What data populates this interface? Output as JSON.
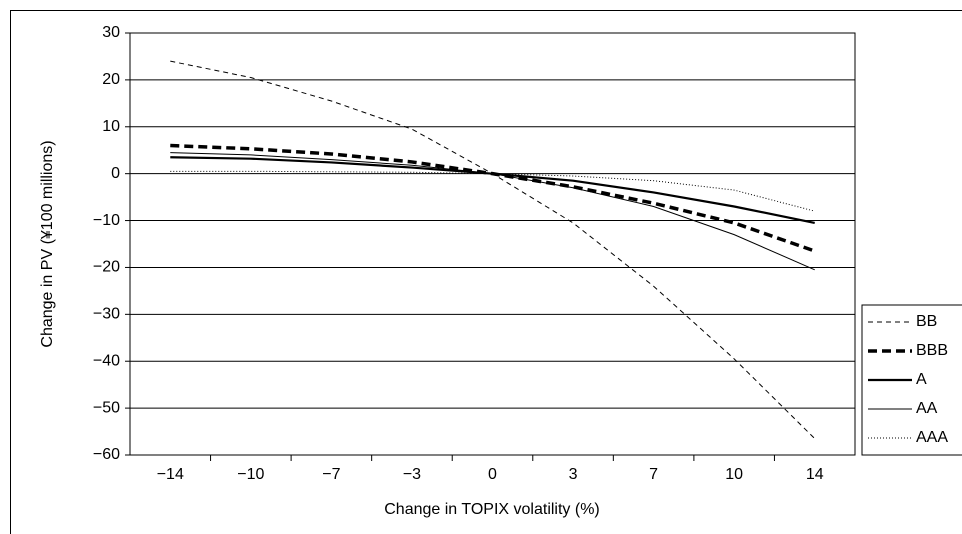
{
  "chart_data": {
    "type": "line",
    "x_label": "Change in TOPIX volatility (%)",
    "y_label": "Change in PV (¥100 millions)",
    "categories": [
      "−14",
      "−10",
      "−7",
      "−3",
      "0",
      "3",
      "7",
      "10",
      "14"
    ],
    "series": [
      {
        "name": "BB",
        "color": "#000000",
        "line_style": "dashed",
        "values": [
          24,
          20.5,
          15.5,
          9.5,
          0,
          -10.5,
          -24,
          -39.5,
          -56.5
        ]
      },
      {
        "name": "BBB",
        "color": "#000000",
        "line_style": "bold-dashed",
        "values": [
          6,
          5.3,
          4.2,
          2.5,
          0,
          -2.8,
          -6.3,
          -10.5,
          -16.5
        ]
      },
      {
        "name": "A",
        "color": "#000000",
        "line_style": "bold",
        "values": [
          3.5,
          3.2,
          2.4,
          1.3,
          0,
          -1.5,
          -4,
          -7,
          -10.5
        ]
      },
      {
        "name": "AA",
        "color": "#000000",
        "line_style": "solid",
        "values": [
          4.5,
          4,
          3,
          1.8,
          0,
          -3,
          -7,
          -13,
          -20.5
        ]
      },
      {
        "name": "AAA",
        "color": "#000000",
        "line_style": "dotted",
        "values": [
          0.5,
          0.5,
          0.4,
          0.3,
          0,
          -0.5,
          -1.5,
          -3.5,
          -8
        ]
      }
    ],
    "ylim": [
      -60,
      30
    ],
    "yticks": [
      {
        "value": -60,
        "label": "−60"
      },
      {
        "value": -50,
        "label": "−50"
      },
      {
        "value": -40,
        "label": "−40"
      },
      {
        "value": -30,
        "label": "−30"
      },
      {
        "value": -20,
        "label": "−20"
      },
      {
        "value": -10,
        "label": "−10"
      },
      0,
      10,
      20,
      30
    ],
    "grid": true,
    "legend": "right"
  }
}
